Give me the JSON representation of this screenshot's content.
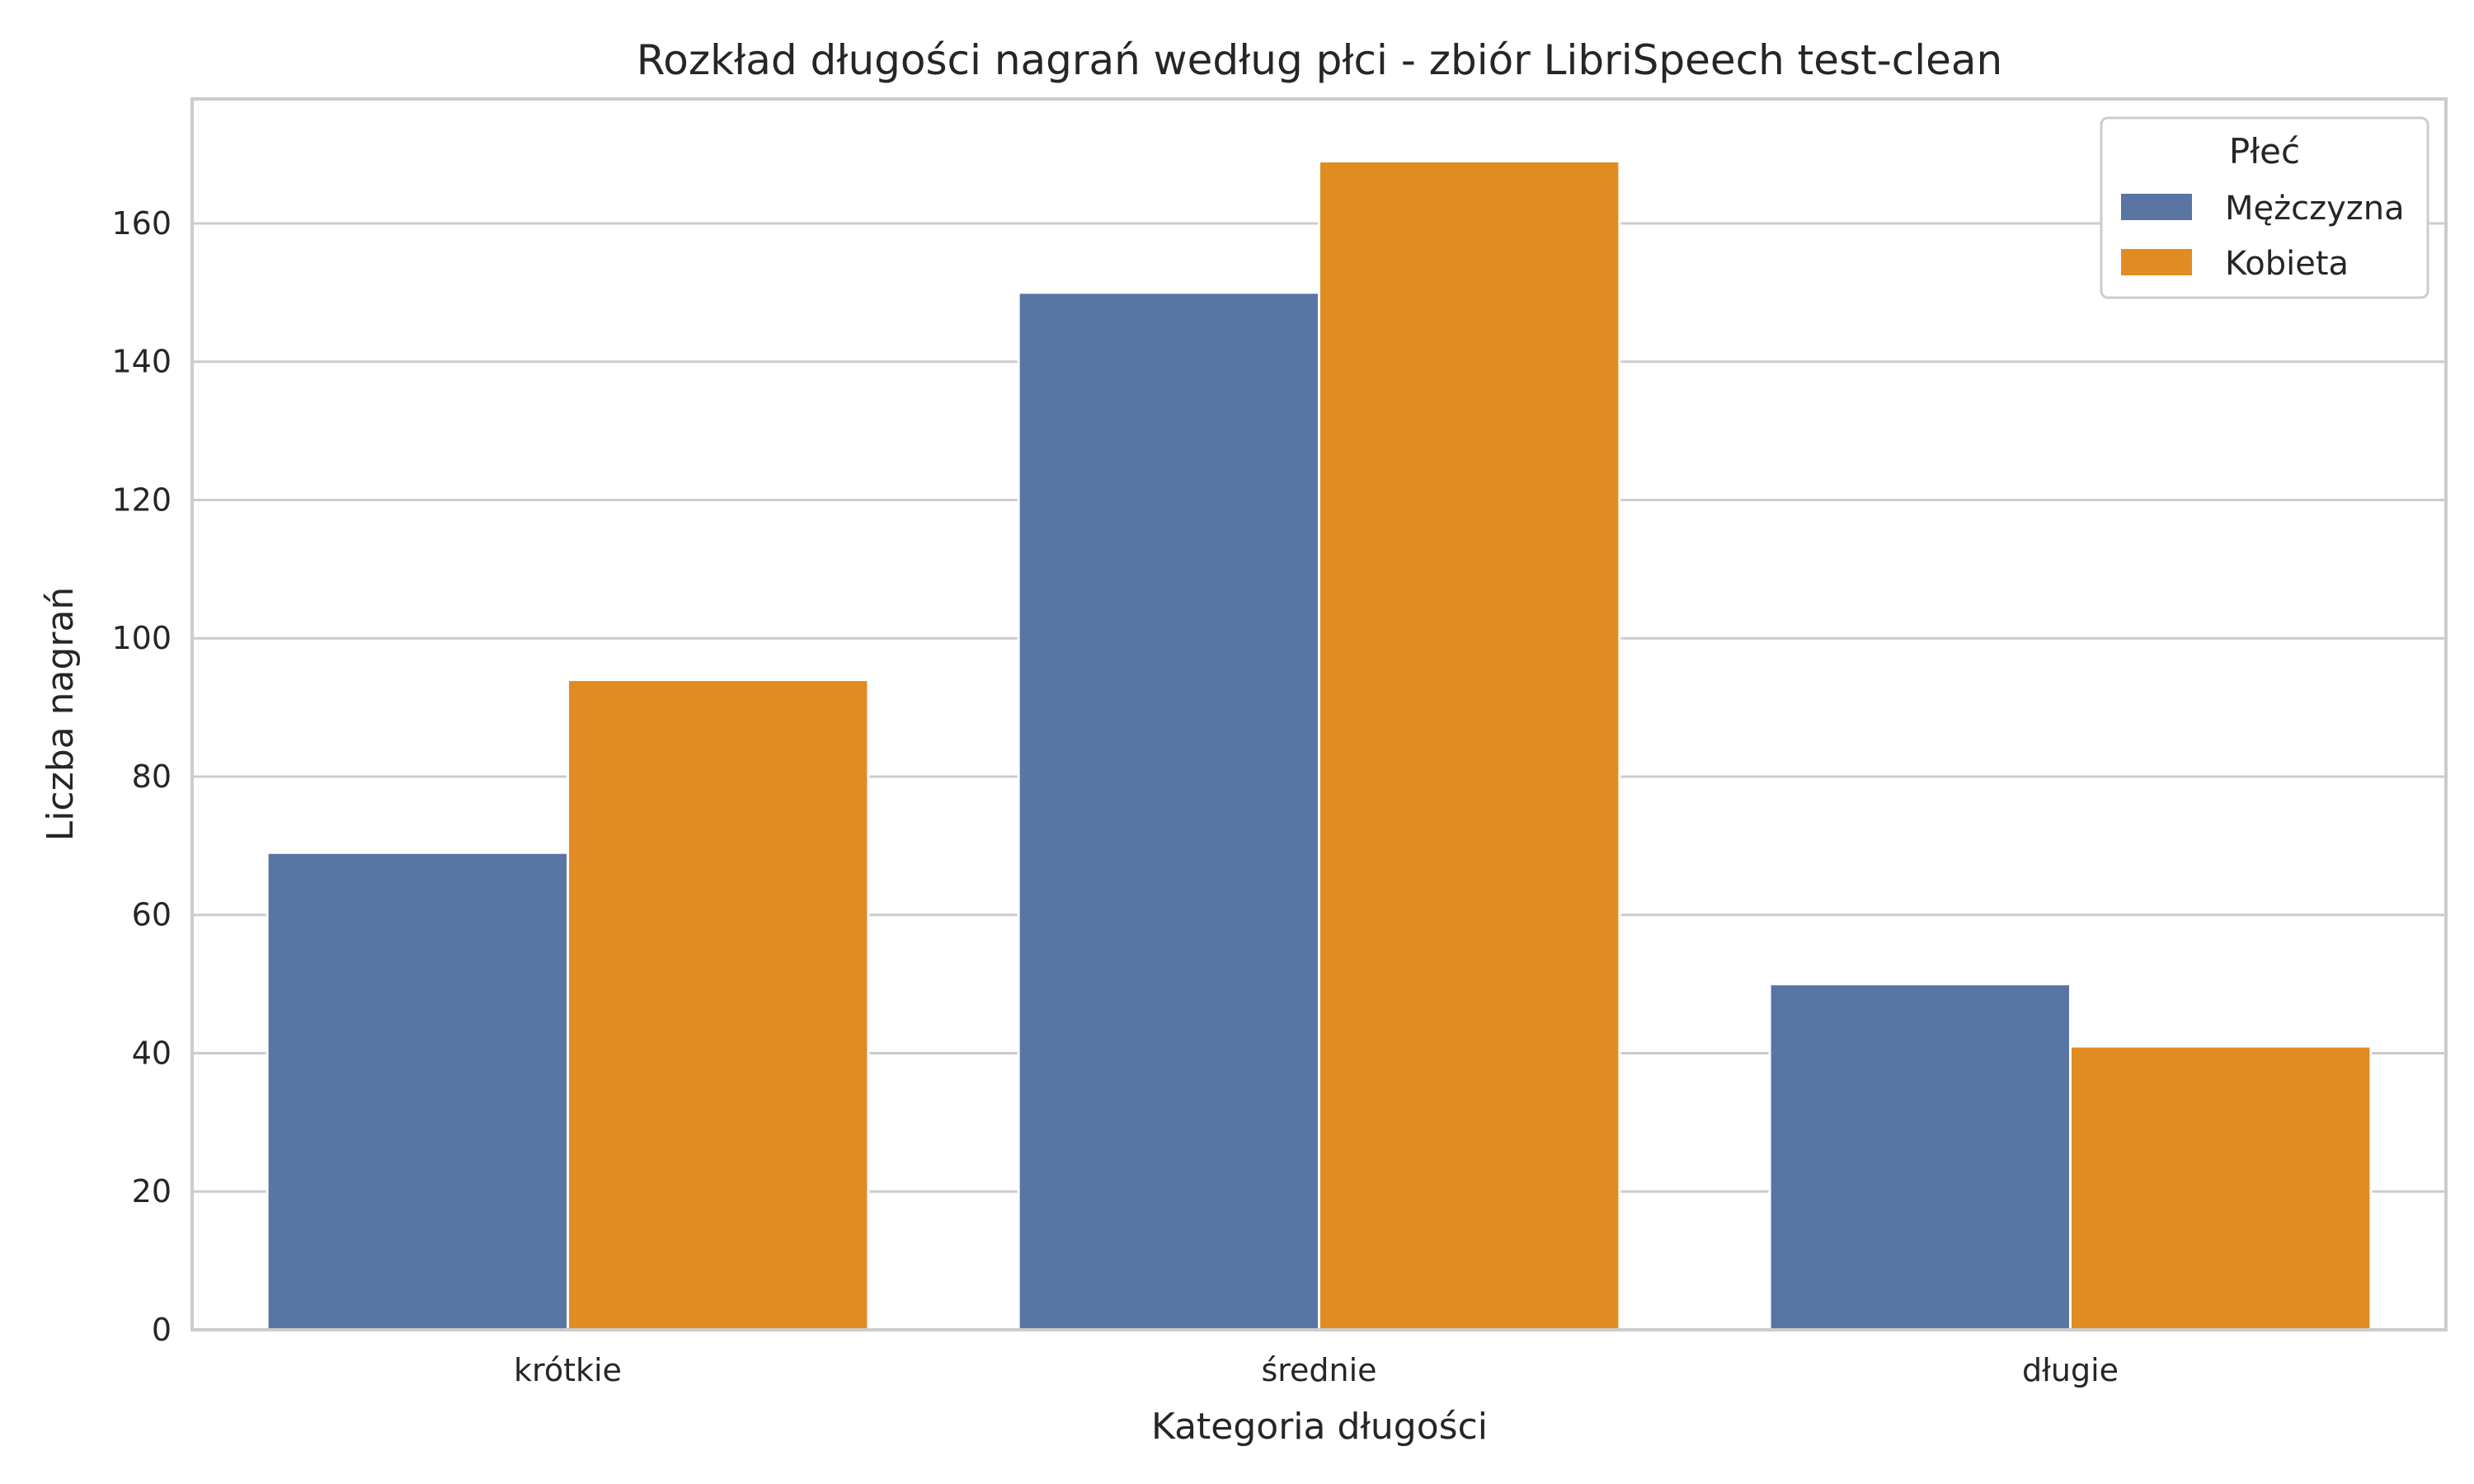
{
  "chart_data": {
    "type": "bar",
    "title": "Rozkład długości nagrań według płci - zbiór LibriSpeech test-clean",
    "xlabel": "Kategoria długości",
    "ylabel": "Liczba nagrań",
    "categories": [
      "krótkie",
      "średnie",
      "długie"
    ],
    "series": [
      {
        "name": "Mężczyzna",
        "color": "#5975a4",
        "values": [
          69,
          150,
          50
        ]
      },
      {
        "name": "Kobieta",
        "color": "#e08c23",
        "values": [
          94,
          169,
          41
        ]
      }
    ],
    "ylim": [
      0,
      178
    ],
    "yticks": [
      0,
      20,
      40,
      60,
      80,
      100,
      120,
      140,
      160
    ],
    "grid": "horizontal",
    "legend": {
      "title": "Płeć",
      "placement": "top-right"
    }
  }
}
